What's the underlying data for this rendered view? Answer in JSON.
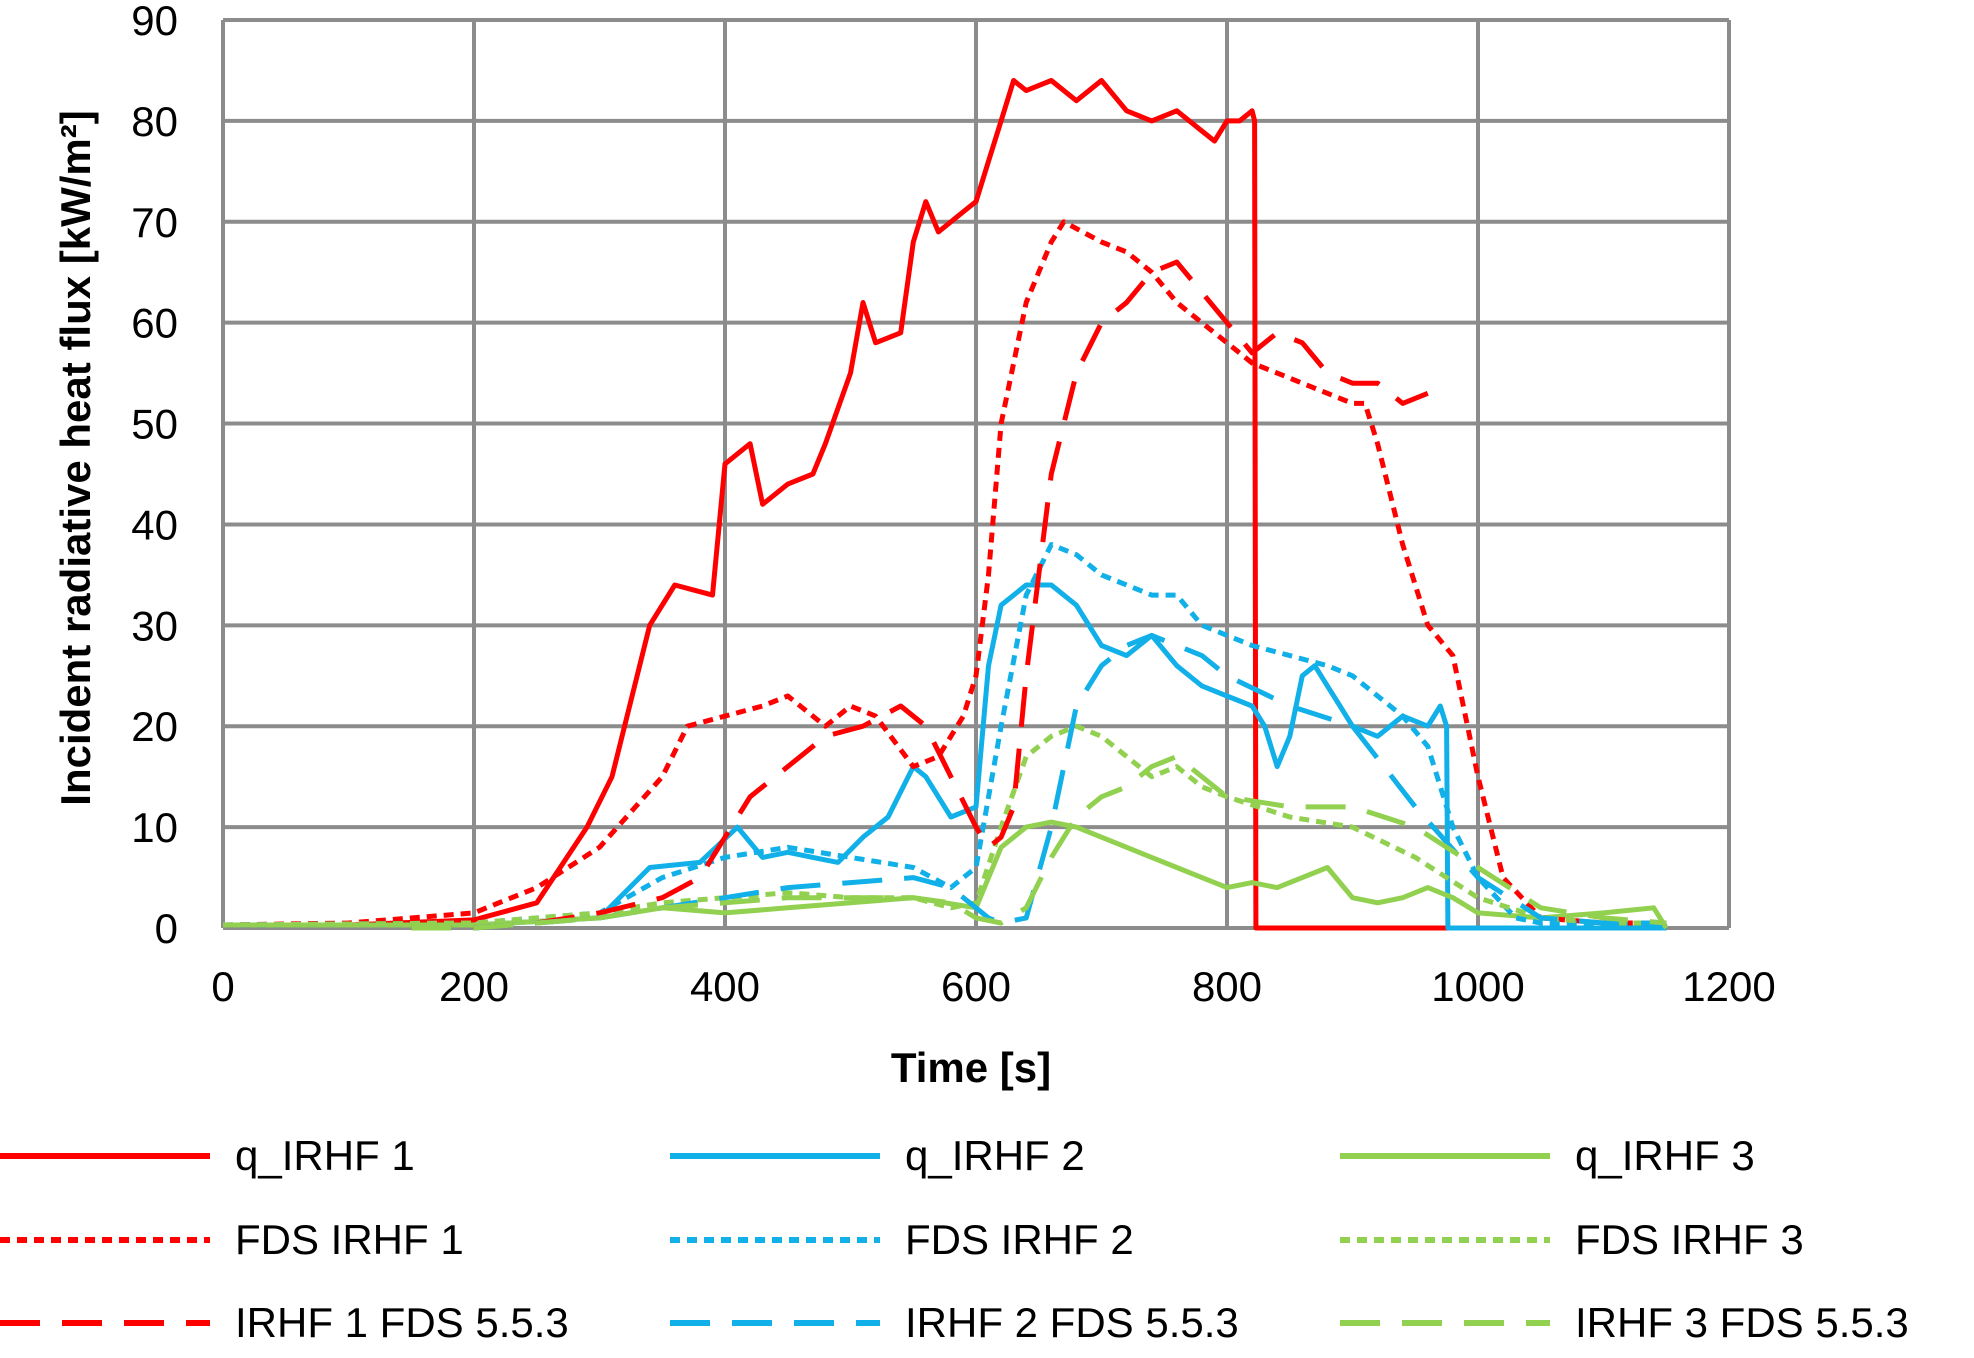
{
  "chart_data": {
    "type": "line",
    "title": "",
    "xlabel": "Time [s]",
    "ylabel": "Incident radiative heat flux [kW/m²]",
    "xlim": [
      0,
      1200
    ],
    "ylim": [
      0,
      90
    ],
    "xticks": [
      "0",
      "200",
      "400",
      "600",
      "800",
      "1000",
      "1200"
    ],
    "yticks": [
      "0",
      "10",
      "20",
      "30",
      "40",
      "50",
      "60",
      "70",
      "80",
      "90"
    ],
    "grid": true,
    "legend_position": "bottom",
    "series": [
      {
        "name": "q_IRHF 1",
        "color": "#ff0000",
        "style": "solid",
        "x": [
          0,
          100,
          200,
          250,
          290,
          310,
          340,
          360,
          390,
          400,
          420,
          430,
          450,
          470,
          480,
          500,
          510,
          520,
          540,
          550,
          560,
          570,
          580,
          590,
          600,
          610,
          620,
          630,
          640,
          660,
          680,
          700,
          720,
          740,
          760,
          780,
          790,
          800,
          810,
          820,
          822,
          823,
          900,
          980
        ],
        "y": [
          0.3,
          0.3,
          0.8,
          2.5,
          10,
          15,
          30,
          34,
          33,
          46,
          48,
          42,
          44,
          45,
          48,
          55,
          62,
          58,
          59,
          68,
          72,
          69,
          70,
          71,
          72,
          76,
          80,
          84,
          83,
          84,
          82,
          84,
          81,
          80,
          81,
          79,
          78,
          80,
          80,
          81,
          80,
          0,
          0,
          0
        ]
      },
      {
        "name": "q_IRHF 2",
        "color": "#11b0e8",
        "style": "solid",
        "x": [
          0,
          200,
          300,
          340,
          380,
          410,
          430,
          450,
          470,
          490,
          510,
          530,
          550,
          560,
          580,
          600,
          610,
          620,
          640,
          660,
          680,
          700,
          720,
          740,
          760,
          780,
          800,
          820,
          830,
          840,
          850,
          860,
          870,
          880,
          890,
          900,
          920,
          940,
          960,
          970,
          975,
          976,
          1000,
          1150
        ],
        "y": [
          0.3,
          0.3,
          1,
          6,
          6.5,
          10,
          7,
          7.5,
          7,
          6.5,
          9,
          11,
          16,
          15,
          11,
          12,
          26,
          32,
          34,
          34,
          32,
          28,
          27,
          29,
          26,
          24,
          23,
          22,
          20,
          16,
          19,
          25,
          26,
          24,
          22,
          20,
          19,
          21,
          20,
          22,
          20,
          0,
          0,
          0
        ]
      },
      {
        "name": "q_IRHF 3",
        "color": "#92d050",
        "style": "solid",
        "x": [
          0,
          200,
          300,
          350,
          400,
          450,
          500,
          550,
          600,
          620,
          640,
          660,
          680,
          700,
          720,
          740,
          760,
          780,
          800,
          820,
          840,
          860,
          880,
          900,
          920,
          940,
          960,
          980,
          1000,
          1050,
          1100,
          1140,
          1150
        ],
        "y": [
          0.3,
          0.3,
          1,
          2,
          1.5,
          2,
          2.5,
          3,
          2,
          8,
          10,
          10.5,
          10,
          9,
          8,
          7,
          6,
          5,
          4,
          4.5,
          4,
          5,
          6,
          3,
          2.5,
          3,
          4,
          3,
          1.5,
          1,
          1.5,
          2,
          0
        ]
      },
      {
        "name": "FDS IRHF 1",
        "color": "#ff0000",
        "style": "dotted",
        "x": [
          0,
          100,
          200,
          250,
          300,
          350,
          370,
          400,
          430,
          450,
          480,
          500,
          520,
          550,
          570,
          590,
          600,
          610,
          620,
          640,
          660,
          670,
          700,
          720,
          740,
          760,
          780,
          800,
          820,
          840,
          860,
          880,
          900,
          910,
          920,
          940,
          960,
          980,
          1000,
          1020,
          1050,
          1100,
          1150
        ],
        "y": [
          0.3,
          0.5,
          1.5,
          4,
          8,
          15,
          20,
          21,
          22,
          23,
          20,
          22,
          21,
          16,
          17,
          21,
          25,
          35,
          50,
          62,
          68,
          70,
          68,
          67,
          65,
          62,
          60,
          58,
          56,
          55,
          54,
          53,
          52,
          52,
          48,
          38,
          30,
          27,
          15,
          5,
          1,
          0.5,
          0.5
        ]
      },
      {
        "name": "FDS IRHF 2",
        "color": "#11b0e8",
        "style": "dotted",
        "x": [
          0,
          200,
          300,
          350,
          400,
          450,
          500,
          550,
          580,
          600,
          620,
          640,
          660,
          680,
          700,
          720,
          740,
          760,
          780,
          800,
          820,
          850,
          880,
          900,
          920,
          940,
          960,
          980,
          1000,
          1030,
          1050,
          1100,
          1150
        ],
        "y": [
          0.3,
          0.5,
          1.5,
          5,
          7,
          8,
          7,
          6,
          4,
          6,
          20,
          33,
          38,
          37,
          35,
          34,
          33,
          33,
          30,
          29,
          28,
          27,
          26,
          25,
          23,
          21,
          18,
          10,
          5,
          1,
          0.5,
          0.5,
          0.5
        ]
      },
      {
        "name": "FDS IRHF 3",
        "color": "#92d050",
        "style": "dotted",
        "x": [
          0,
          200,
          300,
          350,
          400,
          450,
          500,
          550,
          580,
          600,
          620,
          640,
          660,
          680,
          700,
          720,
          740,
          760,
          780,
          800,
          850,
          900,
          950,
          1000,
          1050,
          1100,
          1150
        ],
        "y": [
          0.3,
          0.5,
          1.5,
          2.5,
          3,
          3.5,
          3,
          3,
          2,
          2.5,
          10,
          17,
          19,
          20,
          19,
          17,
          15,
          16,
          14,
          13,
          11,
          10,
          7,
          3,
          1,
          0.5,
          0.5
        ]
      },
      {
        "name": "IRHF 1 FDS 5.5.3",
        "color": "#ff0000",
        "style": "dashed",
        "x": [
          150,
          200,
          250,
          300,
          350,
          380,
          400,
          420,
          450,
          480,
          510,
          540,
          560,
          580,
          600,
          610,
          620,
          630,
          640,
          660,
          680,
          700,
          720,
          740,
          760,
          780,
          800,
          820,
          840,
          860,
          880,
          900,
          920,
          940,
          960
        ],
        "y": [
          0,
          0,
          0.5,
          1.5,
          3,
          5,
          9,
          13,
          16,
          19,
          20,
          22,
          20,
          15,
          10,
          8,
          9,
          12,
          25,
          45,
          55,
          60,
          62,
          65,
          66,
          63,
          60,
          57,
          59,
          58,
          55,
          54,
          54,
          52,
          53
        ]
      },
      {
        "name": "IRHF 2 FDS 5.5.3",
        "color": "#11b0e8",
        "style": "dashed",
        "x": [
          150,
          200,
          300,
          350,
          400,
          450,
          500,
          550,
          580,
          600,
          610,
          620,
          640,
          660,
          680,
          700,
          720,
          740,
          760,
          780,
          800,
          850,
          900,
          950,
          1000,
          1050,
          1100,
          1150
        ],
        "y": [
          0,
          0,
          1,
          2,
          3,
          4,
          4.5,
          5,
          4,
          2,
          1,
          0.5,
          1,
          10,
          22,
          26,
          28,
          29,
          28,
          27,
          25,
          22,
          20,
          12,
          5,
          1,
          0.5,
          0.5
        ]
      },
      {
        "name": "IRHF 3 FDS 5.5.3",
        "color": "#92d050",
        "style": "dashed",
        "x": [
          150,
          200,
          300,
          350,
          400,
          450,
          500,
          550,
          580,
          600,
          620,
          640,
          660,
          680,
          700,
          720,
          740,
          760,
          780,
          800,
          850,
          900,
          950,
          1000,
          1050,
          1100,
          1150
        ],
        "y": [
          0,
          0,
          1,
          2,
          2.5,
          3,
          3,
          3,
          2.5,
          1,
          0.5,
          2,
          7,
          11,
          13,
          14,
          16,
          17,
          15,
          13,
          12,
          12,
          10,
          6,
          2,
          1,
          0.5
        ]
      }
    ]
  }
}
